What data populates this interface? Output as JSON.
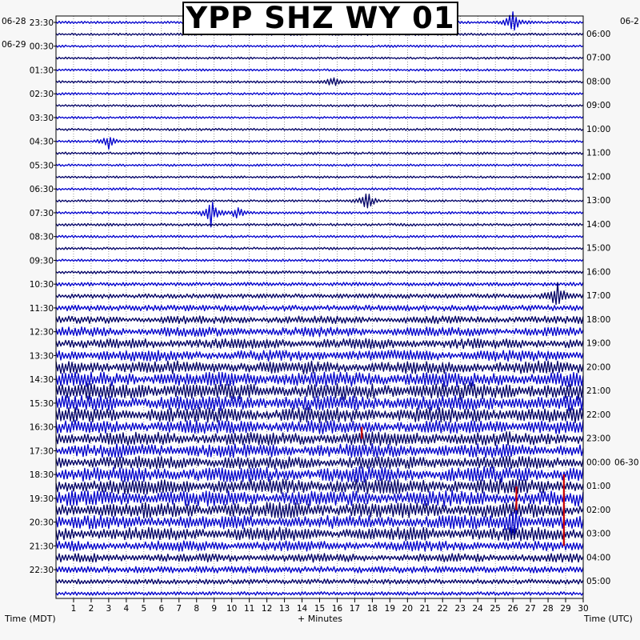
{
  "title": "YPP SHZ WY 01",
  "chart_data": {
    "type": "helicorder",
    "title": "YPP SHZ WY 01",
    "xlabel": "+ Minutes",
    "left_axis_label": "Time (MDT)",
    "right_axis_label": "Time (UTC)",
    "x_range": [
      0,
      30
    ],
    "x_ticks": [
      "1",
      "2",
      "3",
      "4",
      "5",
      "6",
      "7",
      "8",
      "9",
      "10",
      "11",
      "12",
      "13",
      "14",
      "15",
      "16",
      "17",
      "18",
      "19",
      "20",
      "21",
      "22",
      "23",
      "24",
      "25",
      "26",
      "27",
      "28",
      "29",
      "30"
    ],
    "rows_per_hour": 2,
    "trace_colors": [
      "#0000cc",
      "#000066",
      "#0000cc",
      "#000066"
    ],
    "highlight_color": "#cc0000",
    "left_date_labels": [
      "06-28",
      "06-29"
    ],
    "right_date_labels": [
      "06-2",
      "06-30"
    ],
    "left_time_labels": [
      "23:30",
      "00:30",
      "01:30",
      "02:30",
      "03:30",
      "04:30",
      "05:30",
      "06:30",
      "07:30",
      "08:30",
      "09:30",
      "10:30",
      "11:30",
      "12:30",
      "13:30",
      "14:30",
      "15:30",
      "16:30",
      "17:30",
      "18:30",
      "19:30",
      "20:30",
      "21:30",
      "22:30"
    ],
    "right_time_labels": [
      "06:00",
      "07:00",
      "08:00",
      "09:00",
      "10:00",
      "11:00",
      "12:00",
      "13:00",
      "14:00",
      "15:00",
      "16:00",
      "17:00",
      "18:00",
      "19:00",
      "20:00",
      "21:00",
      "22:00",
      "23:00",
      "00:00",
      "01:00",
      "02:00",
      "03:00",
      "04:00",
      "05:00"
    ],
    "row_amplitude_levels": [
      1.5,
      1.4,
      1.4,
      1.3,
      1.3,
      1.4,
      1.4,
      1.3,
      1.3,
      1.4,
      1.4,
      1.5,
      1.4,
      1.3,
      1.4,
      1.4,
      1.5,
      1.6,
      1.5,
      1.5,
      1.5,
      1.8,
      2.2,
      2.8,
      3.5,
      4.5,
      5.5,
      6,
      6.5,
      7.5,
      8.5,
      9.5,
      9,
      9,
      8,
      8,
      8,
      7.5,
      9,
      9,
      9,
      9,
      8,
      8,
      6,
      5,
      4,
      3,
      2.2
    ],
    "events": [
      {
        "minute": 8.8,
        "row": 16,
        "amplitude": 12
      },
      {
        "minute": 10.3,
        "row": 16,
        "amplitude": 6
      },
      {
        "minute": 17.7,
        "row": 15,
        "amplitude": 8
      },
      {
        "minute": 26.0,
        "row": 0,
        "amplitude": 10
      },
      {
        "minute": 3.0,
        "row": 10,
        "amplitude": 6
      },
      {
        "minute": 15.8,
        "row": 5,
        "amplitude": 5
      },
      {
        "minute": 28.5,
        "row": 23,
        "amplitude": 12
      },
      {
        "minute": 26.0,
        "row": 42,
        "amplitude": 14
      }
    ],
    "red_markers": [
      {
        "minute": 28.9,
        "from_row": 38,
        "to_row": 44
      },
      {
        "minute": 17.4,
        "from_row": 34,
        "to_row": 35
      },
      {
        "minute": 26.2,
        "from_row": 39,
        "to_row": 41
      }
    ]
  }
}
